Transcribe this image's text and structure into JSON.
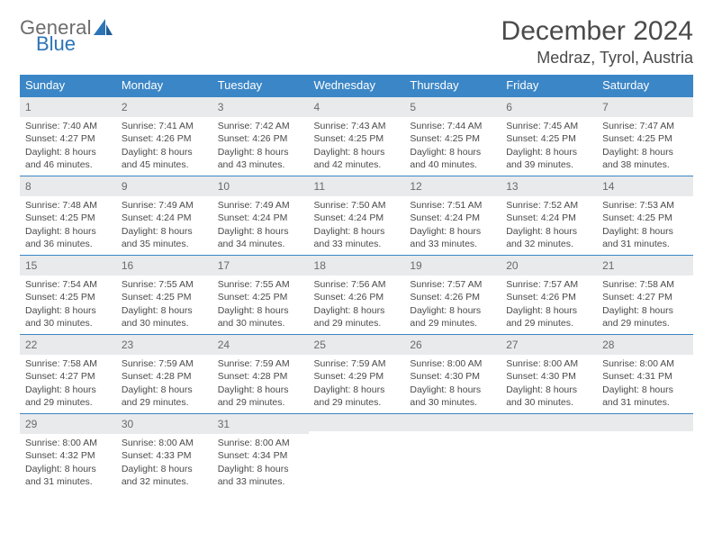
{
  "logo": {
    "text1": "General",
    "text2": "Blue"
  },
  "title": "December 2024",
  "location": "Medraz, Tyrol, Austria",
  "header_bg": "#3b86c6",
  "weekdays": [
    "Sunday",
    "Monday",
    "Tuesday",
    "Wednesday",
    "Thursday",
    "Friday",
    "Saturday"
  ],
  "days": [
    {
      "n": "1",
      "sr": "7:40 AM",
      "ss": "4:27 PM",
      "dl": "8 hours and 46 minutes."
    },
    {
      "n": "2",
      "sr": "7:41 AM",
      "ss": "4:26 PM",
      "dl": "8 hours and 45 minutes."
    },
    {
      "n": "3",
      "sr": "7:42 AM",
      "ss": "4:26 PM",
      "dl": "8 hours and 43 minutes."
    },
    {
      "n": "4",
      "sr": "7:43 AM",
      "ss": "4:25 PM",
      "dl": "8 hours and 42 minutes."
    },
    {
      "n": "5",
      "sr": "7:44 AM",
      "ss": "4:25 PM",
      "dl": "8 hours and 40 minutes."
    },
    {
      "n": "6",
      "sr": "7:45 AM",
      "ss": "4:25 PM",
      "dl": "8 hours and 39 minutes."
    },
    {
      "n": "7",
      "sr": "7:47 AM",
      "ss": "4:25 PM",
      "dl": "8 hours and 38 minutes."
    },
    {
      "n": "8",
      "sr": "7:48 AM",
      "ss": "4:25 PM",
      "dl": "8 hours and 36 minutes."
    },
    {
      "n": "9",
      "sr": "7:49 AM",
      "ss": "4:24 PM",
      "dl": "8 hours and 35 minutes."
    },
    {
      "n": "10",
      "sr": "7:49 AM",
      "ss": "4:24 PM",
      "dl": "8 hours and 34 minutes."
    },
    {
      "n": "11",
      "sr": "7:50 AM",
      "ss": "4:24 PM",
      "dl": "8 hours and 33 minutes."
    },
    {
      "n": "12",
      "sr": "7:51 AM",
      "ss": "4:24 PM",
      "dl": "8 hours and 33 minutes."
    },
    {
      "n": "13",
      "sr": "7:52 AM",
      "ss": "4:24 PM",
      "dl": "8 hours and 32 minutes."
    },
    {
      "n": "14",
      "sr": "7:53 AM",
      "ss": "4:25 PM",
      "dl": "8 hours and 31 minutes."
    },
    {
      "n": "15",
      "sr": "7:54 AM",
      "ss": "4:25 PM",
      "dl": "8 hours and 30 minutes."
    },
    {
      "n": "16",
      "sr": "7:55 AM",
      "ss": "4:25 PM",
      "dl": "8 hours and 30 minutes."
    },
    {
      "n": "17",
      "sr": "7:55 AM",
      "ss": "4:25 PM",
      "dl": "8 hours and 30 minutes."
    },
    {
      "n": "18",
      "sr": "7:56 AM",
      "ss": "4:26 PM",
      "dl": "8 hours and 29 minutes."
    },
    {
      "n": "19",
      "sr": "7:57 AM",
      "ss": "4:26 PM",
      "dl": "8 hours and 29 minutes."
    },
    {
      "n": "20",
      "sr": "7:57 AM",
      "ss": "4:26 PM",
      "dl": "8 hours and 29 minutes."
    },
    {
      "n": "21",
      "sr": "7:58 AM",
      "ss": "4:27 PM",
      "dl": "8 hours and 29 minutes."
    },
    {
      "n": "22",
      "sr": "7:58 AM",
      "ss": "4:27 PM",
      "dl": "8 hours and 29 minutes."
    },
    {
      "n": "23",
      "sr": "7:59 AM",
      "ss": "4:28 PM",
      "dl": "8 hours and 29 minutes."
    },
    {
      "n": "24",
      "sr": "7:59 AM",
      "ss": "4:28 PM",
      "dl": "8 hours and 29 minutes."
    },
    {
      "n": "25",
      "sr": "7:59 AM",
      "ss": "4:29 PM",
      "dl": "8 hours and 29 minutes."
    },
    {
      "n": "26",
      "sr": "8:00 AM",
      "ss": "4:30 PM",
      "dl": "8 hours and 30 minutes."
    },
    {
      "n": "27",
      "sr": "8:00 AM",
      "ss": "4:30 PM",
      "dl": "8 hours and 30 minutes."
    },
    {
      "n": "28",
      "sr": "8:00 AM",
      "ss": "4:31 PM",
      "dl": "8 hours and 31 minutes."
    },
    {
      "n": "29",
      "sr": "8:00 AM",
      "ss": "4:32 PM",
      "dl": "8 hours and 31 minutes."
    },
    {
      "n": "30",
      "sr": "8:00 AM",
      "ss": "4:33 PM",
      "dl": "8 hours and 32 minutes."
    },
    {
      "n": "31",
      "sr": "8:00 AM",
      "ss": "4:34 PM",
      "dl": "8 hours and 33 minutes."
    }
  ],
  "labels": {
    "sunrise": "Sunrise:",
    "sunset": "Sunset:",
    "daylight": "Daylight:"
  }
}
